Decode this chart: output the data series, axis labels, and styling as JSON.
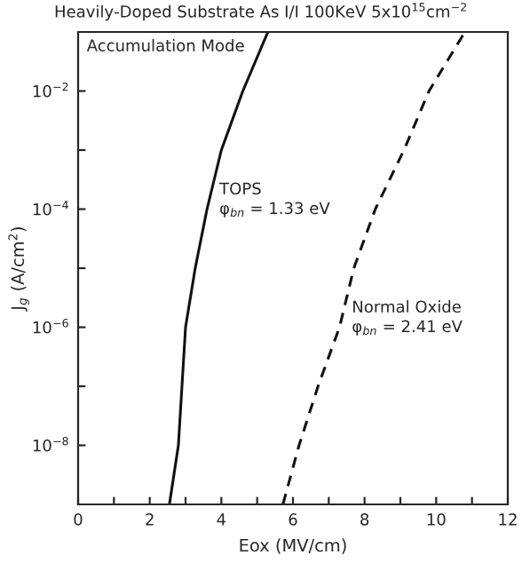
{
  "chart_data": {
    "type": "line",
    "title": "Heavily-Doped Substrate As I/I 100KeV 5x10$^{15}$cm$^{−2}$",
    "xlabel": "Eox (MV/cm)",
    "ylabel": "J$_{g}$ (A/cm$^{2}$)",
    "log": "y",
    "xlim": [
      0,
      12
    ],
    "ylim": [
      1e-09,
      0.1
    ],
    "xticks": [
      0,
      {
        "value": 1,
        "label": null
      },
      2,
      {
        "value": 3,
        "label": null
      },
      4,
      {
        "value": 5,
        "label": null
      },
      6,
      {
        "value": 7,
        "label": null
      },
      8,
      {
        "value": 9,
        "label": null
      },
      10,
      {
        "value": 11,
        "label": null
      },
      12
    ],
    "yticks": [
      {
        "value": 1e-08,
        "label": "10$^{−8}$"
      },
      {
        "value": 1e-07,
        "label": null
      },
      {
        "value": 1e-06,
        "label": "10$^{−6}$"
      },
      {
        "value": 1e-05,
        "label": null
      },
      {
        "value": 0.0001,
        "label": "10$^{−4}$"
      },
      {
        "value": 0.001,
        "label": null
      },
      {
        "value": 0.01,
        "label": "10$^{−2}$"
      }
    ],
    "grid": false,
    "legend": false,
    "marker": "none",
    "series": [
      {
        "name": "TOPS",
        "color": "#111111",
        "line_style": "solid",
        "x": [
          2.55,
          2.8,
          2.9,
          3.0,
          3.27,
          3.6,
          4.0,
          4.6,
          5.3
        ],
        "values": [
          1e-09,
          1e-08,
          1e-07,
          1e-06,
          1e-05,
          0.0001,
          0.001,
          0.01,
          0.1
        ]
      },
      {
        "name": "Normal Oxide",
        "color": "#111111",
        "line_style": "dashed",
        "x": [
          5.72,
          6.17,
          6.7,
          7.3,
          7.7,
          8.3,
          9.1,
          9.8,
          10.8
        ],
        "values": [
          1e-09,
          1e-08,
          1e-07,
          1e-06,
          1e-05,
          0.0001,
          0.001,
          0.01,
          0.1
        ]
      }
    ],
    "annotations": [
      "Accumulation Mode",
      {
        "text": "φ$_{bn}$ = 1.33 eV",
        "x": 3.6,
        "y": 0.0001
      },
      {
        "text": "φ$_{bn}$ = 2.41 eV",
        "x": 7.3,
        "y": 1e-06
      }
    ]
  }
}
